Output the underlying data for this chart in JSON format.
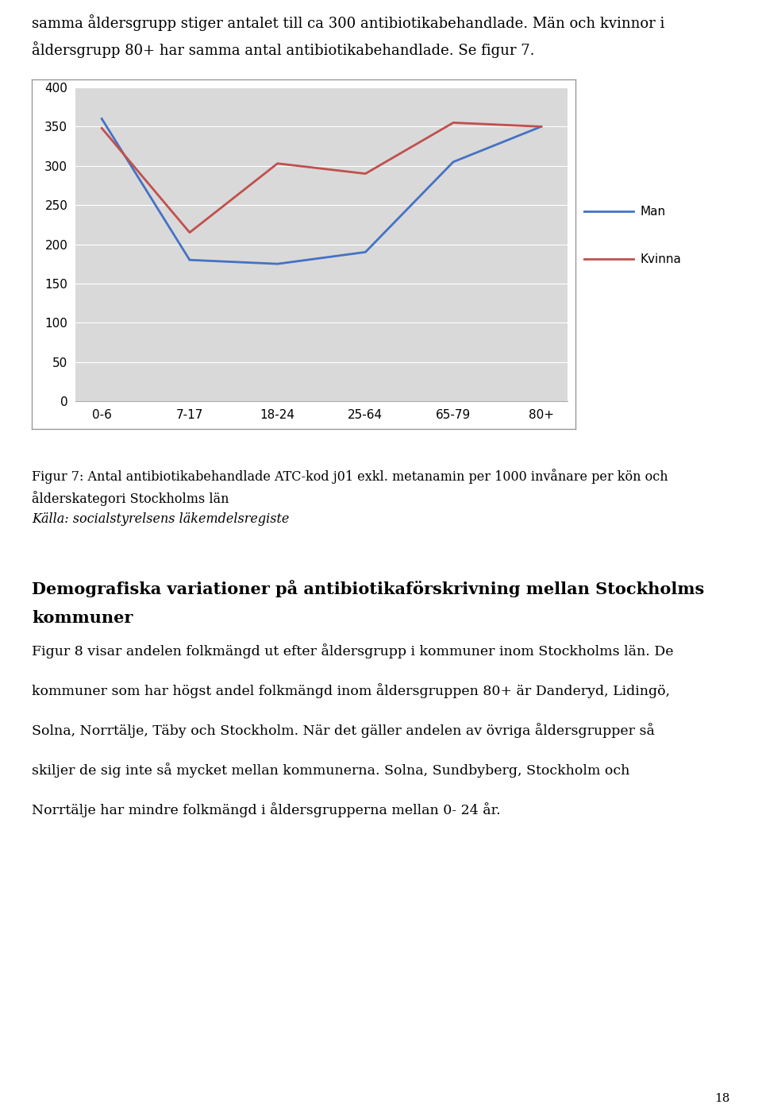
{
  "intro_line1": "samma åldersgrupp stiger antalet till ca 300 antibiotikabehandlade. Män och kvinnor i",
  "intro_line2": "åldersgrupp 80+ har samma antal antibiotikabehandlade. Se figur 7.",
  "x_labels": [
    "0-6",
    "7-17",
    "18-24",
    "25-64",
    "65-79",
    "80+"
  ],
  "man_values": [
    360,
    180,
    175,
    190,
    305,
    350
  ],
  "kvinna_values": [
    348,
    215,
    303,
    290,
    355,
    350
  ],
  "man_color": "#4472C4",
  "kvinna_color": "#C0504D",
  "y_ticks": [
    0,
    50,
    100,
    150,
    200,
    250,
    300,
    350,
    400
  ],
  "y_min": 0,
  "y_max": 400,
  "chart_bg_color": "#D9D9D9",
  "legend_labels": [
    "Man",
    "Kvinna"
  ],
  "caption_line1": "Figur 7: Antal antibiotikabehandlade ATC-kod j01 exkl. metanamin per 1000 invånare per kön och",
  "caption_line2": "ålderskategori Stockholms län",
  "caption_line3": "Källa: socialstyrelsens läkemdelsregiste",
  "section_title_line1": "Demografiska variationer på antibiotikaförskrivning mellan Stockholms",
  "section_title_line2": "kommuner",
  "body_sentences": [
    "Figur 8 visar andelen folkmängd ut efter åldersgrupp i kommuner inom Stockholms län. De",
    "kommuner som har högst andel folkmängd inom åldersgruppen 80+ är Danderyd, Lidingö,",
    "Solna, Norrtälje, Täby och Stockholm. När det gäller andelen av övriga åldersgrupper så",
    "skiljer de sig inte så mycket mellan kommunerna. Solna, Sundbyberg, Stockholm och",
    "Norrtälje har mindre folkmängd i åldersgrupperna mellan 0- 24 år."
  ],
  "page_number": "18",
  "bg_color": "#FFFFFF",
  "chart_border_color": "#999999",
  "grid_color": "#FFFFFF"
}
